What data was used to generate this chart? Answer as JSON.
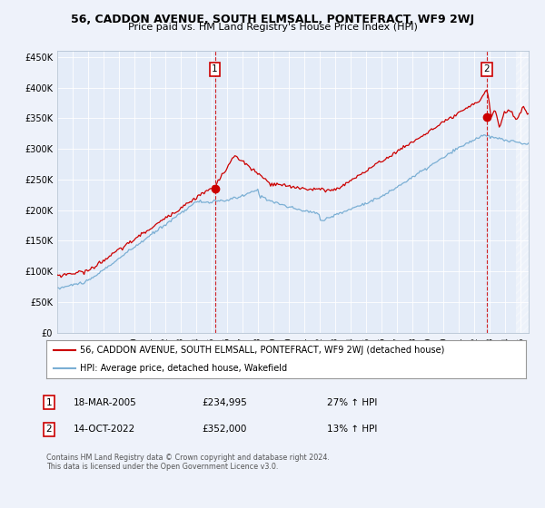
{
  "title": "56, CADDON AVENUE, SOUTH ELMSALL, PONTEFRACT, WF9 2WJ",
  "subtitle": "Price paid vs. HM Land Registry's House Price Index (HPI)",
  "legend_line1": "56, CADDON AVENUE, SOUTH ELMSALL, PONTEFRACT, WF9 2WJ (detached house)",
  "legend_line2": "HPI: Average price, detached house, Wakefield",
  "annotation1_date": "18-MAR-2005",
  "annotation1_price": "£234,995",
  "annotation1_change": "27% ↑ HPI",
  "annotation2_date": "14-OCT-2022",
  "annotation2_price": "£352,000",
  "annotation2_change": "13% ↑ HPI",
  "footnote": "Contains HM Land Registry data © Crown copyright and database right 2024.\nThis data is licensed under the Open Government Licence v3.0.",
  "ylim": [
    0,
    460000
  ],
  "yticks": [
    0,
    50000,
    100000,
    150000,
    200000,
    250000,
    300000,
    350000,
    400000,
    450000
  ],
  "bg_color": "#eef2fa",
  "plot_bg": "#e4ecf8",
  "red_color": "#cc0000",
  "blue_color": "#7bafd4",
  "ann1_x_year": 2005.2,
  "ann1_y": 234995,
  "ann2_x_year": 2022.79,
  "ann2_y": 352000,
  "xmin": 1995,
  "xmax": 2025.5
}
